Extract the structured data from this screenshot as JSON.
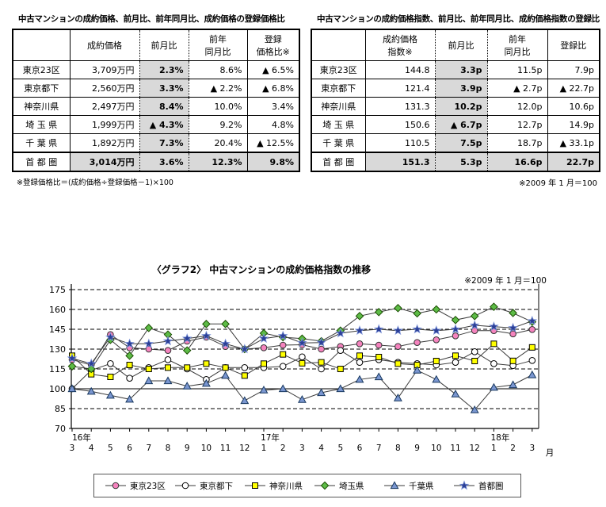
{
  "left_table": {
    "title": "中古マンションの成約価格、前月比、前年同月比、成約価格の登録価格比",
    "columns": [
      "",
      "成約価格",
      "前月比",
      "前年\n同月比",
      "登録\n価格比※"
    ],
    "rows": [
      [
        "東京23区",
        "3,709万円",
        "2.3%",
        "8.6%",
        "▲ 6.5%"
      ],
      [
        "東京都下",
        "2,560万円",
        "3.3%",
        "▲ 2.2%",
        "▲ 6.8%"
      ],
      [
        "神奈川県",
        "2,497万円",
        "8.4%",
        "10.0%",
        "3.4%"
      ],
      [
        "埼 玉 県",
        "1,999万円",
        "▲ 4.3%",
        "9.2%",
        "4.8%"
      ],
      [
        "千 葉 県",
        "1,892万円",
        "7.3%",
        "20.4%",
        "▲ 12.5%"
      ],
      [
        "首 都 圏",
        "3,014万円",
        "3.6%",
        "12.3%",
        "9.8%"
      ]
    ],
    "footnote": "※登録価格比＝(成約価格÷登録価格－1)×100"
  },
  "right_table": {
    "title": "中古マンションの成約価格指数、前月比、前年同月比、成約価格指数の登録比",
    "columns": [
      "",
      "成約価格\n指数※",
      "前月比",
      "前年\n同月比",
      "登録比"
    ],
    "rows": [
      [
        "東京23区",
        "144.8",
        "3.3p",
        "11.5p",
        "7.9p"
      ],
      [
        "東京都下",
        "121.4",
        "3.9p",
        "▲ 2.7p",
        "▲ 22.7p"
      ],
      [
        "神奈川県",
        "131.3",
        "10.2p",
        "12.0p",
        "10.6p"
      ],
      [
        "埼 玉 県",
        "150.6",
        "▲ 6.7p",
        "12.7p",
        "14.9p"
      ],
      [
        "千 葉 県",
        "110.5",
        "7.5p",
        "18.7p",
        "▲ 33.1p"
      ],
      [
        "首 都 圏",
        "151.3",
        "5.3p",
        "16.6p",
        "22.7p"
      ]
    ],
    "footnote": "※2009 年 1 月＝100"
  },
  "chart_data": {
    "type": "line",
    "title": "〈グラフ2〉 中古マンションの成約価格指数の推移",
    "note": "※2009 年 1 月＝100",
    "x_unit_label": "月",
    "ylim": [
      70,
      175
    ],
    "y_step": 15,
    "y_solid_line_at": 100,
    "grid": "dashed-horizontal",
    "legend_position": "bottom",
    "categories": [
      "2016-03",
      "2016-04",
      "2016-05",
      "2016-06",
      "2016-07",
      "2016-08",
      "2016-09",
      "2016-10",
      "2016-11",
      "2016-12",
      "2017-01",
      "2017-02",
      "2017-03",
      "2017-04",
      "2017-05",
      "2017-06",
      "2017-07",
      "2017-08",
      "2017-09",
      "2017-10",
      "2017-11",
      "2017-12",
      "2018-01",
      "2018-02",
      "2018-03"
    ],
    "month_labels": [
      3,
      4,
      5,
      6,
      7,
      8,
      9,
      10,
      11,
      12,
      1,
      2,
      3,
      4,
      5,
      6,
      7,
      8,
      9,
      10,
      11,
      12,
      1,
      2,
      3
    ],
    "year_marks": [
      {
        "index": 0,
        "label": "16年"
      },
      {
        "index": 10,
        "label": "17年"
      },
      {
        "index": 22,
        "label": "18年"
      }
    ],
    "series": [
      {
        "key": "tokyo23",
        "label": "東京23区",
        "marker": "circle",
        "fill": "#F583BE",
        "stroke": "#333333",
        "values": [
          122,
          118,
          141,
          131,
          130,
          129,
          136,
          139,
          132,
          130,
          131,
          133,
          133.3,
          130,
          132,
          134,
          133,
          132,
          135,
          137,
          140,
          144,
          144,
          141.5,
          144.8
        ]
      },
      {
        "key": "tokyotoka",
        "label": "東京都下",
        "marker": "circle",
        "fill": "#FFFFFF",
        "stroke": "#000000",
        "values": [
          100,
          114,
          119,
          108,
          116,
          122,
          115,
          107,
          116,
          116,
          116,
          117,
          124.1,
          115,
          129,
          120,
          122,
          120,
          119,
          118,
          120,
          128,
          119,
          117.5,
          121.4
        ]
      },
      {
        "key": "kanagawa",
        "label": "神奈川県",
        "marker": "square",
        "fill": "#FFFF00",
        "stroke": "#000000",
        "values": [
          125,
          111,
          109,
          118,
          115,
          116,
          116,
          119,
          116,
          110,
          119,
          126,
          119.3,
          120,
          115,
          125,
          124,
          119,
          118,
          121,
          125,
          121,
          134,
          121.1,
          131.3
        ]
      },
      {
        "key": "saitama",
        "label": "埼玉県",
        "marker": "diamond",
        "fill": "#5DBB46",
        "stroke": "#1A4D00",
        "values": [
          117,
          115,
          137,
          125,
          146,
          141,
          129,
          149,
          149,
          130,
          142,
          139,
          137.9,
          136,
          144,
          155,
          158,
          161,
          157,
          160,
          152,
          155,
          162,
          157.3,
          150.6
        ]
      },
      {
        "key": "chiba",
        "label": "千葉県",
        "marker": "triangle",
        "fill": "#7A96D0",
        "stroke": "#17375E",
        "values": [
          100,
          98,
          95,
          92,
          106,
          106,
          102,
          104,
          110,
          91,
          99,
          100,
          91.8,
          97,
          100,
          107,
          109,
          93,
          114,
          107,
          96,
          84,
          101,
          103,
          110.5
        ]
      },
      {
        "key": "shutoken",
        "label": "首都圏",
        "marker": "star",
        "fill": "#2B3F97",
        "stroke": "#8096D8",
        "values": [
          123,
          119,
          139,
          134,
          134,
          136,
          138,
          140,
          134,
          130,
          138,
          140,
          134.7,
          135,
          142,
          144,
          145,
          144,
          145,
          144,
          145,
          148,
          147,
          146,
          151.3
        ]
      }
    ]
  }
}
